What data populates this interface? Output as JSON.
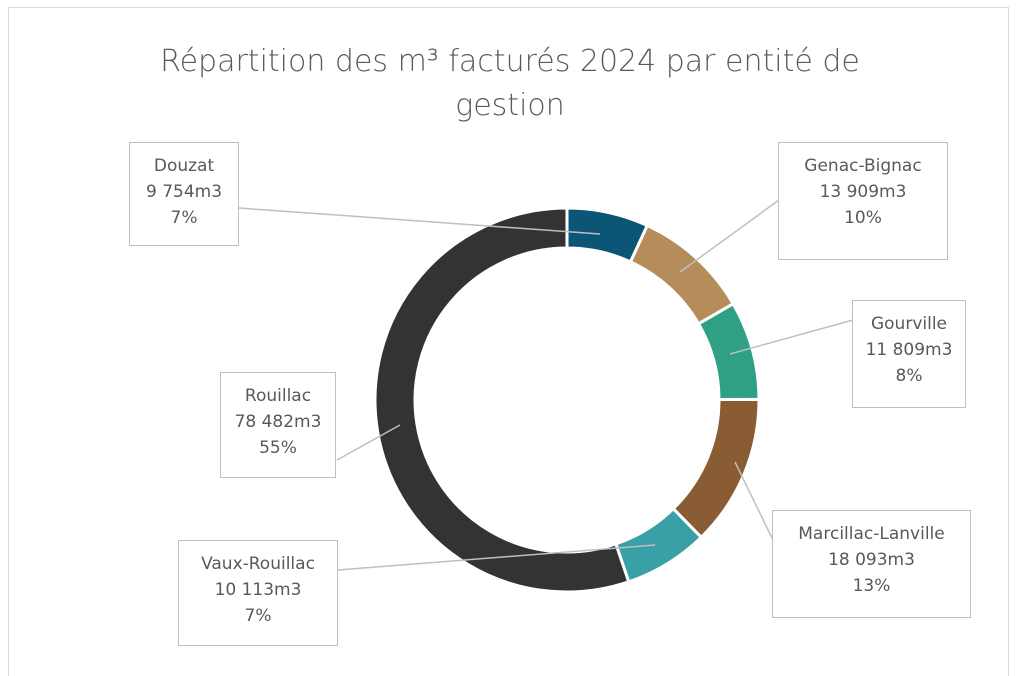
{
  "chart_data": {
    "type": "donut",
    "title": "Répartition des m³ facturés 2024 par entité de gestion",
    "categories": [
      "Douzat",
      "Genac-Bignac",
      "Gourville",
      "Marcillac-Lanville",
      "Vaux-Rouillac",
      "Rouillac"
    ],
    "values": [
      9754,
      13909,
      11809,
      18093,
      10113,
      78482
    ],
    "value_labels": [
      "9 754m3",
      "13 909m3",
      "11 809m3",
      "18 093m3",
      "10 113m3",
      "78 482m3"
    ],
    "percentages": [
      7,
      10,
      8,
      13,
      7,
      55
    ],
    "percentage_labels": [
      "7%",
      "10%",
      "8%",
      "13%",
      "7%",
      "55%"
    ],
    "colors": [
      "#0b5577",
      "#b58c5a",
      "#2fa084",
      "#8a5c33",
      "#3aa0a8",
      "#333333"
    ]
  }
}
